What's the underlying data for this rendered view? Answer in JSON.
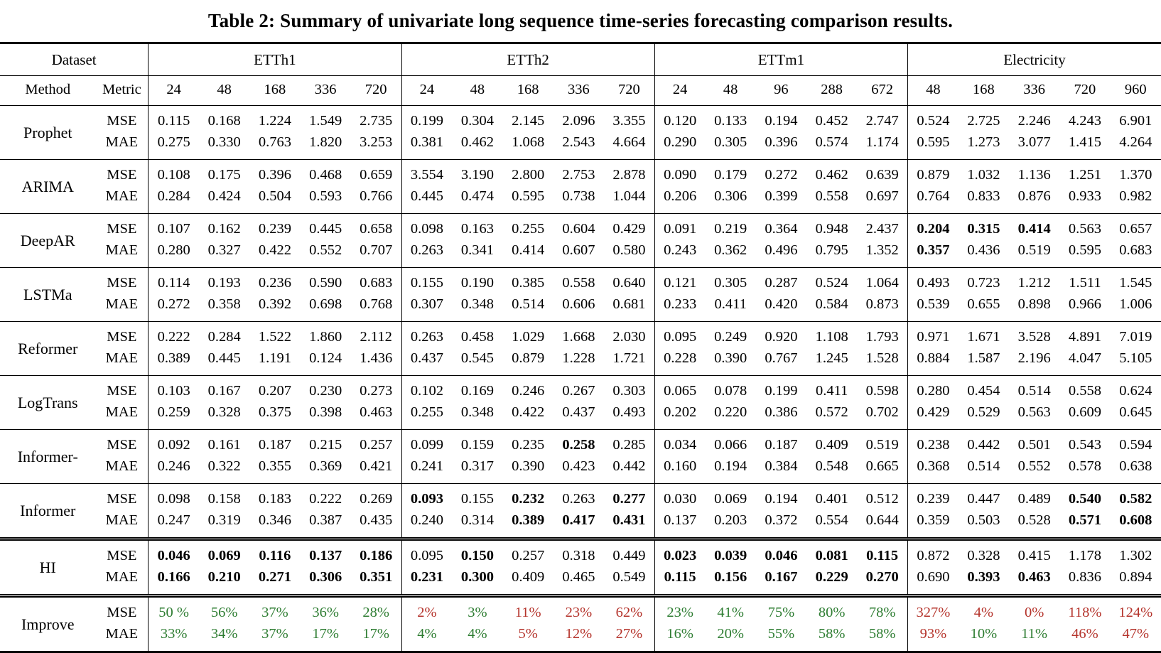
{
  "title": "Table 2: Summary of univariate long sequence time-series forecasting comparison results.",
  "colors": {
    "improve_green": "#2e7d32",
    "improve_red": "#b5342c"
  },
  "chart_data": {
    "type": "table",
    "title": "Table 2: Summary of univariate long sequence time-series forecasting comparison results.",
    "metrics": [
      "MSE",
      "MAE"
    ],
    "datasets": [
      "ETTh1",
      "ETTh2",
      "ETTm1",
      "Electricity"
    ]
  },
  "table": {
    "dataset_label": "Dataset",
    "method_label": "Method",
    "metric_label": "Metric",
    "groups": [
      {
        "name": "ETTh1",
        "horizons": [
          "24",
          "48",
          "168",
          "336",
          "720"
        ]
      },
      {
        "name": "ETTh2",
        "horizons": [
          "24",
          "48",
          "168",
          "336",
          "720"
        ]
      },
      {
        "name": "ETTm1",
        "horizons": [
          "24",
          "48",
          "96",
          "288",
          "672"
        ]
      },
      {
        "name": "Electricity",
        "horizons": [
          "48",
          "168",
          "336",
          "720",
          "960"
        ]
      }
    ],
    "methods": [
      {
        "name": "Prophet",
        "rule": "single",
        "metrics": [
          {
            "label": "MSE",
            "bold": [],
            "values": [
              "0.115",
              "0.168",
              "1.224",
              "1.549",
              "2.735",
              "0.199",
              "0.304",
              "2.145",
              "2.096",
              "3.355",
              "0.120",
              "0.133",
              "0.194",
              "0.452",
              "2.747",
              "0.524",
              "2.725",
              "2.246",
              "4.243",
              "6.901"
            ]
          },
          {
            "label": "MAE",
            "bold": [],
            "values": [
              "0.275",
              "0.330",
              "0.763",
              "1.820",
              "3.253",
              "0.381",
              "0.462",
              "1.068",
              "2.543",
              "4.664",
              "0.290",
              "0.305",
              "0.396",
              "0.574",
              "1.174",
              "0.595",
              "1.273",
              "3.077",
              "1.415",
              "4.264"
            ]
          }
        ]
      },
      {
        "name": "ARIMA",
        "rule": "single",
        "metrics": [
          {
            "label": "MSE",
            "bold": [],
            "values": [
              "0.108",
              "0.175",
              "0.396",
              "0.468",
              "0.659",
              "3.554",
              "3.190",
              "2.800",
              "2.753",
              "2.878",
              "0.090",
              "0.179",
              "0.272",
              "0.462",
              "0.639",
              "0.879",
              "1.032",
              "1.136",
              "1.251",
              "1.370"
            ]
          },
          {
            "label": "MAE",
            "bold": [],
            "values": [
              "0.284",
              "0.424",
              "0.504",
              "0.593",
              "0.766",
              "0.445",
              "0.474",
              "0.595",
              "0.738",
              "1.044",
              "0.206",
              "0.306",
              "0.399",
              "0.558",
              "0.697",
              "0.764",
              "0.833",
              "0.876",
              "0.933",
              "0.982"
            ]
          }
        ]
      },
      {
        "name": "DeepAR",
        "rule": "single",
        "metrics": [
          {
            "label": "MSE",
            "bold": [
              15,
              16,
              17
            ],
            "values": [
              "0.107",
              "0.162",
              "0.239",
              "0.445",
              "0.658",
              "0.098",
              "0.163",
              "0.255",
              "0.604",
              "0.429",
              "0.091",
              "0.219",
              "0.364",
              "0.948",
              "2.437",
              "0.204",
              "0.315",
              "0.414",
              "0.563",
              "0.657"
            ]
          },
          {
            "label": "MAE",
            "bold": [
              15
            ],
            "values": [
              "0.280",
              "0.327",
              "0.422",
              "0.552",
              "0.707",
              "0.263",
              "0.341",
              "0.414",
              "0.607",
              "0.580",
              "0.243",
              "0.362",
              "0.496",
              "0.795",
              "1.352",
              "0.357",
              "0.436",
              "0.519",
              "0.595",
              "0.683"
            ]
          }
        ]
      },
      {
        "name": "LSTMa",
        "rule": "single",
        "metrics": [
          {
            "label": "MSE",
            "bold": [],
            "values": [
              "0.114",
              "0.193",
              "0.236",
              "0.590",
              "0.683",
              "0.155",
              "0.190",
              "0.385",
              "0.558",
              "0.640",
              "0.121",
              "0.305",
              "0.287",
              "0.524",
              "1.064",
              "0.493",
              "0.723",
              "1.212",
              "1.511",
              "1.545"
            ]
          },
          {
            "label": "MAE",
            "bold": [],
            "values": [
              "0.272",
              "0.358",
              "0.392",
              "0.698",
              "0.768",
              "0.307",
              "0.348",
              "0.514",
              "0.606",
              "0.681",
              "0.233",
              "0.411",
              "0.420",
              "0.584",
              "0.873",
              "0.539",
              "0.655",
              "0.898",
              "0.966",
              "1.006"
            ]
          }
        ]
      },
      {
        "name": "Reformer",
        "rule": "single",
        "metrics": [
          {
            "label": "MSE",
            "bold": [],
            "values": [
              "0.222",
              "0.284",
              "1.522",
              "1.860",
              "2.112",
              "0.263",
              "0.458",
              "1.029",
              "1.668",
              "2.030",
              "0.095",
              "0.249",
              "0.920",
              "1.108",
              "1.793",
              "0.971",
              "1.671",
              "3.528",
              "4.891",
              "7.019"
            ]
          },
          {
            "label": "MAE",
            "bold": [],
            "values": [
              "0.389",
              "0.445",
              "1.191",
              "0.124",
              "1.436",
              "0.437",
              "0.545",
              "0.879",
              "1.228",
              "1.721",
              "0.228",
              "0.390",
              "0.767",
              "1.245",
              "1.528",
              "0.884",
              "1.587",
              "2.196",
              "4.047",
              "5.105"
            ]
          }
        ]
      },
      {
        "name": "LogTrans",
        "rule": "single",
        "metrics": [
          {
            "label": "MSE",
            "bold": [],
            "values": [
              "0.103",
              "0.167",
              "0.207",
              "0.230",
              "0.273",
              "0.102",
              "0.169",
              "0.246",
              "0.267",
              "0.303",
              "0.065",
              "0.078",
              "0.199",
              "0.411",
              "0.598",
              "0.280",
              "0.454",
              "0.514",
              "0.558",
              "0.624"
            ]
          },
          {
            "label": "MAE",
            "bold": [],
            "values": [
              "0.259",
              "0.328",
              "0.375",
              "0.398",
              "0.463",
              "0.255",
              "0.348",
              "0.422",
              "0.437",
              "0.493",
              "0.202",
              "0.220",
              "0.386",
              "0.572",
              "0.702",
              "0.429",
              "0.529",
              "0.563",
              "0.609",
              "0.645"
            ]
          }
        ]
      },
      {
        "name": "Informer-",
        "rule": "single",
        "metrics": [
          {
            "label": "MSE",
            "bold": [
              8
            ],
            "values": [
              "0.092",
              "0.161",
              "0.187",
              "0.215",
              "0.257",
              "0.099",
              "0.159",
              "0.235",
              "0.258",
              "0.285",
              "0.034",
              "0.066",
              "0.187",
              "0.409",
              "0.519",
              "0.238",
              "0.442",
              "0.501",
              "0.543",
              "0.594"
            ]
          },
          {
            "label": "MAE",
            "bold": [],
            "values": [
              "0.246",
              "0.322",
              "0.355",
              "0.369",
              "0.421",
              "0.241",
              "0.317",
              "0.390",
              "0.423",
              "0.442",
              "0.160",
              "0.194",
              "0.384",
              "0.548",
              "0.665",
              "0.368",
              "0.514",
              "0.552",
              "0.578",
              "0.638"
            ]
          }
        ]
      },
      {
        "name": "Informer",
        "rule": "single",
        "metrics": [
          {
            "label": "MSE",
            "bold": [
              5,
              7,
              9,
              18,
              19
            ],
            "values": [
              "0.098",
              "0.158",
              "0.183",
              "0.222",
              "0.269",
              "0.093",
              "0.155",
              "0.232",
              "0.263",
              "0.277",
              "0.030",
              "0.069",
              "0.194",
              "0.401",
              "0.512",
              "0.239",
              "0.447",
              "0.489",
              "0.540",
              "0.582"
            ]
          },
          {
            "label": "MAE",
            "bold": [
              7,
              8,
              9,
              18,
              19
            ],
            "values": [
              "0.247",
              "0.319",
              "0.346",
              "0.387",
              "0.435",
              "0.240",
              "0.314",
              "0.389",
              "0.417",
              "0.431",
              "0.137",
              "0.203",
              "0.372",
              "0.554",
              "0.644",
              "0.359",
              "0.503",
              "0.528",
              "0.571",
              "0.608"
            ]
          }
        ]
      },
      {
        "name": "HI",
        "rule": "double",
        "metrics": [
          {
            "label": "MSE",
            "bold": [
              0,
              1,
              2,
              3,
              4,
              6,
              10,
              11,
              12,
              13,
              14
            ],
            "values": [
              "0.046",
              "0.069",
              "0.116",
              "0.137",
              "0.186",
              "0.095",
              "0.150",
              "0.257",
              "0.318",
              "0.449",
              "0.023",
              "0.039",
              "0.046",
              "0.081",
              "0.115",
              "0.872",
              "0.328",
              "0.415",
              "1.178",
              "1.302"
            ]
          },
          {
            "label": "MAE",
            "bold": [
              0,
              1,
              2,
              3,
              4,
              5,
              6,
              10,
              11,
              12,
              13,
              14,
              16,
              17
            ],
            "values": [
              "0.166",
              "0.210",
              "0.271",
              "0.306",
              "0.351",
              "0.231",
              "0.300",
              "0.409",
              "0.465",
              "0.549",
              "0.115",
              "0.156",
              "0.167",
              "0.229",
              "0.270",
              "0.690",
              "0.393",
              "0.463",
              "0.836",
              "0.894"
            ]
          }
        ]
      },
      {
        "name": "Improve",
        "rule": "double",
        "metrics": [
          {
            "label": "MSE",
            "bold": [],
            "values": [
              "50 %",
              "56%",
              "37%",
              "36%",
              "28%",
              "2%",
              "3%",
              "11%",
              "23%",
              "62%",
              "23%",
              "41%",
              "75%",
              "80%",
              "78%",
              "327%",
              "4%",
              "0%",
              "118%",
              "124%"
            ],
            "colors": [
              "g",
              "g",
              "g",
              "g",
              "g",
              "r",
              "g",
              "r",
              "r",
              "r",
              "g",
              "g",
              "g",
              "g",
              "g",
              "r",
              "r",
              "r",
              "r",
              "r"
            ]
          },
          {
            "label": "MAE",
            "bold": [],
            "values": [
              "33%",
              "34%",
              "37%",
              "17%",
              "17%",
              "4%",
              "4%",
              "5%",
              "12%",
              "27%",
              "16%",
              "20%",
              "55%",
              "58%",
              "58%",
              "93%",
              "10%",
              "11%",
              "46%",
              "47%"
            ],
            "colors": [
              "g",
              "g",
              "g",
              "g",
              "g",
              "g",
              "g",
              "r",
              "r",
              "r",
              "g",
              "g",
              "g",
              "g",
              "g",
              "r",
              "g",
              "g",
              "r",
              "r"
            ]
          }
        ]
      }
    ]
  }
}
